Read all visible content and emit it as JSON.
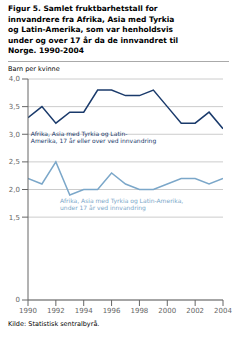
{
  "chart_data": {
    "type": "line",
    "title": "Figur 5. Samlet fruktbarhetstall for\ninnvandrere fra Afrika, Asia med Tyrkia\nog Latin-Amerika, som var henholdsvis\nunder og over 17 år da de innvandret til\nNorge. 1990-2004",
    "ylabel": "Barn per kvinne",
    "source": "Kilde: Statistisk sentralbyrå.",
    "x": [
      1990,
      1991,
      1992,
      1993,
      1994,
      1995,
      1996,
      1997,
      1998,
      1999,
      2000,
      2001,
      2002,
      2003,
      2004
    ],
    "series": [
      {
        "name": "Afrika, Asia med Tyrkia og Latin-Amerika, 17 år eller over ved innvandring",
        "color": "#1a3a6b",
        "values": [
          3.3,
          3.5,
          3.2,
          3.4,
          3.4,
          3.8,
          3.8,
          3.7,
          3.7,
          3.8,
          3.5,
          3.2,
          3.2,
          3.4,
          3.1
        ]
      },
      {
        "name": "Afrika, Asia med Tyrkia og Latin-Amerika, under 17 år ved innvandring",
        "color": "#7ba7c9",
        "values": [
          2.2,
          2.1,
          2.5,
          1.9,
          2.0,
          2.0,
          2.3,
          2.1,
          2.0,
          2.0,
          2.1,
          2.2,
          2.2,
          2.1,
          2.2
        ]
      }
    ],
    "annotations": [
      {
        "text": "Afrika, Asia med Tyrkia og Latin-\nAmerika, 17 år eller over ved innvandring",
        "x": 1990.2,
        "y": 3.08,
        "color": "#1a3a6b"
      },
      {
        "text": "Afrika, Asia med Tyrkia og Latin-Amerika,\nunder 17 år ved innvandring",
        "x": 1992.3,
        "y": 1.87,
        "color": "#7ba7c9"
      }
    ],
    "xlim": [
      1990,
      2004
    ],
    "xticks": [
      1990,
      1992,
      1994,
      1996,
      1998,
      2000,
      2002,
      2004
    ],
    "ylim": [
      0,
      4.0
    ],
    "yticks": [
      0,
      {
        "value": 1.5,
        "label": "1,5"
      },
      {
        "value": 2.0,
        "label": "2,0"
      },
      {
        "value": 2.5,
        "label": "2,5"
      },
      {
        "value": 3.0,
        "label": "3,0"
      },
      {
        "value": 3.5,
        "label": "3,5"
      },
      {
        "value": 4.0,
        "label": "4,0"
      }
    ],
    "grid": true
  }
}
